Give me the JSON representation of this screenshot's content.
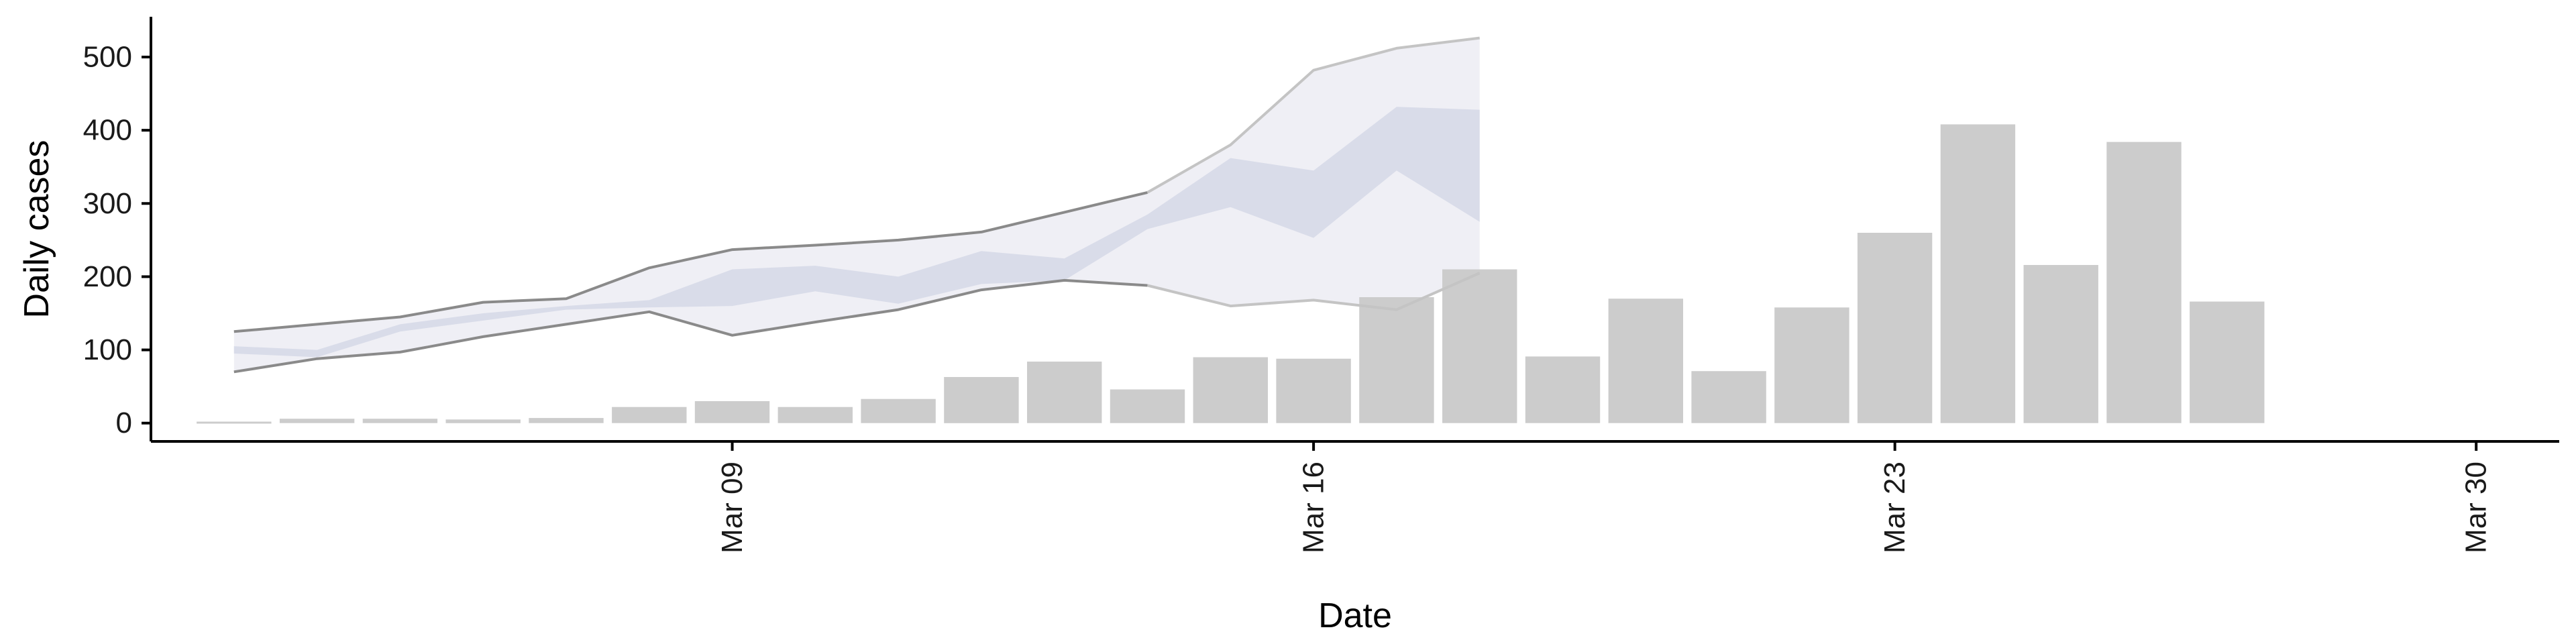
{
  "chart_data": {
    "type": "bar",
    "xlabel": "Date",
    "ylabel": "Daily cases",
    "ylim": [
      -25,
      555
    ],
    "xlim": [
      "2020-03-02",
      "2020-03-31"
    ],
    "yticks": [
      0,
      100,
      200,
      300,
      400,
      500
    ],
    "xticks": [
      {
        "date": "2020-03-09",
        "label": "Mar 09"
      },
      {
        "date": "2020-03-16",
        "label": "Mar 16"
      },
      {
        "date": "2020-03-23",
        "label": "Mar 23"
      },
      {
        "date": "2020-03-30",
        "label": "Mar 30"
      }
    ],
    "bars": {
      "dates": [
        "2020-03-03",
        "2020-03-04",
        "2020-03-05",
        "2020-03-06",
        "2020-03-07",
        "2020-03-08",
        "2020-03-09",
        "2020-03-10",
        "2020-03-11",
        "2020-03-12",
        "2020-03-13",
        "2020-03-14",
        "2020-03-15",
        "2020-03-16",
        "2020-03-17",
        "2020-03-18",
        "2020-03-19",
        "2020-03-20",
        "2020-03-21",
        "2020-03-22",
        "2020-03-23",
        "2020-03-24",
        "2020-03-25",
        "2020-03-26",
        "2020-03-27",
        "2020-03-28",
        "2020-03-29",
        "2020-03-30"
      ],
      "values": [
        2,
        6,
        6,
        5,
        7,
        22,
        30,
        22,
        33,
        63,
        84,
        46,
        90,
        88,
        172,
        210,
        91,
        170,
        71,
        158,
        260,
        408,
        216,
        384,
        166,
        0,
        0,
        0
      ]
    },
    "forecast": {
      "dates": [
        "2020-03-03",
        "2020-03-04",
        "2020-03-05",
        "2020-03-06",
        "2020-03-07",
        "2020-03-08",
        "2020-03-09",
        "2020-03-10",
        "2020-03-11",
        "2020-03-12",
        "2020-03-13",
        "2020-03-14",
        "2020-03-15",
        "2020-03-16",
        "2020-03-17",
        "2020-03-18"
      ],
      "outer_upper": [
        125,
        135,
        145,
        165,
        170,
        212,
        237,
        243,
        250,
        261,
        288,
        315,
        380,
        482,
        512,
        526
      ],
      "outer_lower": [
        70,
        88,
        97,
        118,
        135,
        152,
        120,
        138,
        155,
        182,
        195,
        188,
        160,
        168,
        155,
        205
      ],
      "inner_upper": [
        105,
        100,
        135,
        150,
        160,
        168,
        210,
        215,
        200,
        235,
        225,
        285,
        362,
        345,
        432,
        428
      ],
      "inner_lower": [
        95,
        90,
        125,
        140,
        155,
        158,
        160,
        180,
        163,
        190,
        195,
        265,
        295,
        253,
        345,
        275
      ]
    },
    "colors": {
      "bar": "#cccccc",
      "outer_band": "#e9eaf2",
      "inner_band": "#d3d7e6",
      "line_dark": "#8a8a8a",
      "line_light": "#c4c4c4",
      "axis": "#000000"
    }
  }
}
